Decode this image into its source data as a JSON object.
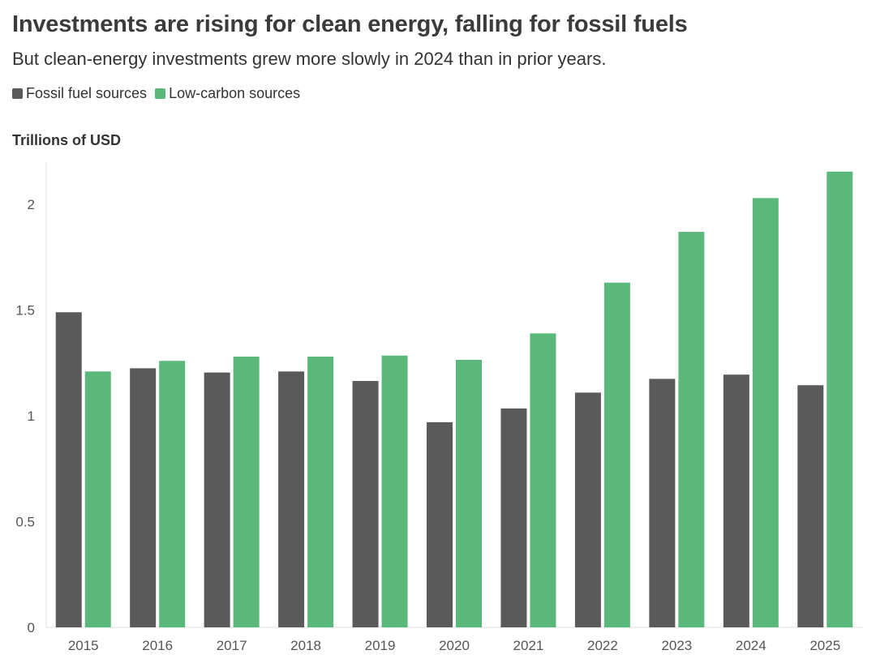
{
  "chart_data": {
    "type": "bar",
    "title": "Investments are rising for clean energy, falling for fossil fuels",
    "subtitle": "But clean-energy investments grew more slowly in 2024 than in prior years.",
    "ylabel": "Trillions of USD",
    "xlabel": "",
    "categories": [
      "2015",
      "2016",
      "2017",
      "2018",
      "2019",
      "2020",
      "2021",
      "2022",
      "2023",
      "2024",
      "2025"
    ],
    "series": [
      {
        "name": "Fossil fuel sources",
        "color": "#5a5a5a",
        "values": [
          1.49,
          1.225,
          1.205,
          1.21,
          1.165,
          0.97,
          1.035,
          1.11,
          1.175,
          1.195,
          1.145
        ]
      },
      {
        "name": "Low-carbon sources",
        "color": "#5ab87a",
        "values": [
          1.21,
          1.26,
          1.28,
          1.28,
          1.285,
          1.265,
          1.39,
          1.63,
          1.87,
          2.03,
          2.155
        ]
      }
    ],
    "ylim": [
      0,
      2.2
    ],
    "yticks": [
      0,
      0.5,
      1,
      1.5,
      2
    ],
    "ytick_labels": [
      "0",
      "0.5",
      "1",
      "1.5",
      "2"
    ],
    "legend": "top-left",
    "grid": false
  }
}
